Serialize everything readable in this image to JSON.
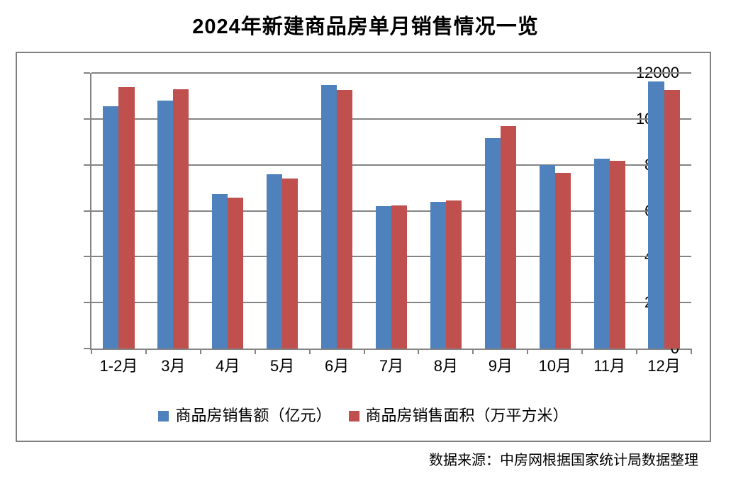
{
  "title": "2024年新建商品房单月销售情况一览",
  "source_note": "数据来源：中房网根据国家统计局数据整理",
  "colors": {
    "series_sales_amount": "#4F81BD",
    "series_sales_area": "#C0504D",
    "gridline": "#848484",
    "axis": "#848484",
    "chart_border": "#7f7f7f",
    "text": "#000000",
    "background": "#ffffff"
  },
  "chart_data": {
    "type": "bar",
    "title": "2024年新建商品房单月销售情况一览",
    "categories": [
      "1-2月",
      "3月",
      "4月",
      "5月",
      "6月",
      "7月",
      "8月",
      "9月",
      "10月",
      "11月",
      "12月"
    ],
    "series": [
      {
        "name": "商品房销售额（亿元）",
        "color": "#4F81BD",
        "values": [
          10566,
          10789,
          6712,
          7598,
          11468,
          6197,
          6393,
          9157,
          7975,
          8270,
          11625
        ]
      },
      {
        "name": "商品房销售面积（万平方米）",
        "color": "#C0504D",
        "values": [
          11369,
          11299,
          6584,
          7390,
          11274,
          6233,
          6453,
          9682,
          7646,
          8188,
          11267
        ]
      }
    ],
    "xlabel": "",
    "ylabel": "",
    "ylim": [
      0,
      12000
    ],
    "yticks": [
      0,
      2000,
      4000,
      6000,
      8000,
      10000,
      12000
    ],
    "grid": true,
    "legend_position": "bottom"
  }
}
